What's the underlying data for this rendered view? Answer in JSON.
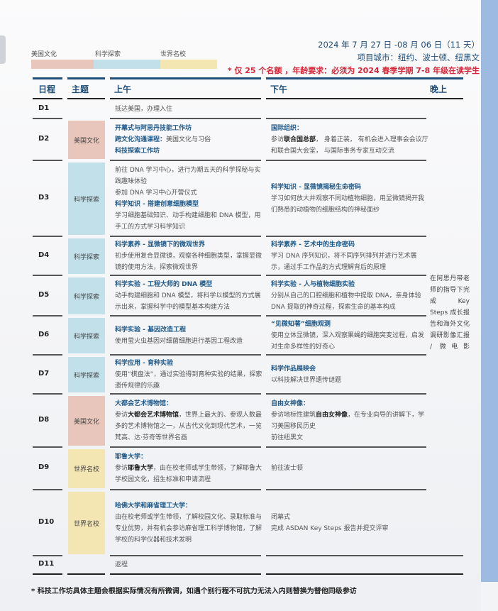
{
  "legend": [
    {
      "label": "美国文化",
      "color": "#e8c6bb"
    },
    {
      "label": "科学探索",
      "color": "#c2e0ea"
    },
    {
      "label": "世界名校",
      "color": "#f4e6b2"
    }
  ],
  "info": {
    "dates": "2024 年 7 月 27 日 -08 月 06 日（11 天）",
    "cities": "项目城市：纽约、波士顿、纽黑文",
    "requirement": "* 仅 25 个名额 ，年龄要求：必须为 2024 春季学期 7-8 年级在读学生"
  },
  "headers": {
    "day": "日程",
    "theme": "主题",
    "morning": "上午",
    "afternoon": "下午",
    "evening": "晚上"
  },
  "rows": [
    {
      "day": "D1",
      "theme": "",
      "am": [
        {
          "t": "",
          "s": "抵达美国，办理入住"
        }
      ],
      "pm": []
    },
    {
      "day": "D2",
      "theme": "美国文化",
      "am": [
        {
          "t": "开幕式与阿思丹技能工作坊",
          "s": ""
        },
        {
          "t": "跨文化沟通课程：",
          "s": "美国文化与习俗"
        },
        {
          "t": "科技探索工作坊",
          "s": ""
        }
      ],
      "pm": [
        {
          "t": "国际组织：",
          "s": ""
        },
        {
          "s": "参访",
          "k": "联合国总部",
          "s2": "， 身着正装， 有机会进入理事会会议厅和联合国大会堂， 与国际事务专家互动交流"
        }
      ]
    },
    {
      "day": "D3",
      "theme": "科学探索",
      "am": [
        {
          "t": "",
          "s": "前往 DNA 学习中心，进行为期五天的科学探秘与实践趣味体验"
        },
        {
          "t": "",
          "s": "参加 DNA 学习中心开营仪式"
        },
        {
          "t": "科学知识 - 搭建创意细胞模型",
          "s": ""
        },
        {
          "t": "",
          "s": "学习细胞基础知识、动手构建细胞和 DNA 模型，用手工的方式学习科学知识"
        }
      ],
      "pm": [
        {
          "t": "科学知识 - 显微镜揭秘生命密码",
          "s": ""
        },
        {
          "t": "",
          "s": "学习如何放大并观察不同动植物细胞，用显微镜揭开我们熟悉的动植物的细胞结构的神秘面纱"
        }
      ]
    },
    {
      "day": "D4",
      "theme": "科学探索",
      "am": [
        {
          "t": "科学素养 - 显微镜下的微观世界",
          "s": ""
        },
        {
          "t": "",
          "s": "初步使用复合显微镜，观察各种细胞类型，掌握显微镜的使用方法，探索微观世界"
        }
      ],
      "pm": [
        {
          "t": "科学素养 - 艺术中的生命密码",
          "s": ""
        },
        {
          "t": "",
          "s": "学习 DNA 序列知识，将不同序列排列并进行艺术展示，通过手工作品的方式理解背后的原理"
        }
      ]
    },
    {
      "day": "D5",
      "theme": "科学探索",
      "am": [
        {
          "t": "科学实验 - 工程大师的 DNA 模型",
          "s": ""
        },
        {
          "t": "",
          "s": "动手构建细胞和 DNA 模型，将科学以模型的方式展示出来，掌握科学中的模型基本构建方法"
        }
      ],
      "pm": [
        {
          "t": "科学实验 - 人与植物细胞实验",
          "s": ""
        },
        {
          "t": "",
          "s": "分别从自己的口腔细胞和植物中提取 DNA，亲身体验 DNA 提取的神奇过程，探索生命的基本构成"
        }
      ]
    },
    {
      "day": "D6",
      "theme": "科学探索",
      "am": [
        {
          "t": "科学实验 - 基因改造工程",
          "s": ""
        },
        {
          "t": "",
          "s": "使用萤火虫基因对细菌细胞进行基因工程改造"
        }
      ],
      "pm": [
        {
          "t": "“见微知著”细胞观测",
          "s": ""
        },
        {
          "t": "",
          "s": "使用立体显微镜，深入观察果蝇的细胞突变过程，启发对生命多样性的好奇心"
        }
      ]
    },
    {
      "day": "D7",
      "theme": "科学探索",
      "am": [
        {
          "t": "科学应用 - 育种实验",
          "s": ""
        },
        {
          "t": "",
          "s": "使用“棋盘法”，通过实验得到育种实验的结果，探索遗传规律的乐趣"
        }
      ],
      "pm": [
        {
          "t": "科学作品展映会",
          "s": ""
        },
        {
          "t": "",
          "s": "以科技解决世界遗传谜题"
        }
      ]
    },
    {
      "day": "D8",
      "theme": "美国文化",
      "am": [
        {
          "t": "大都会艺术博物馆：",
          "s": ""
        },
        {
          "s": "参访",
          "k": "大都会艺术博物馆",
          "s2": "，世界上最大的、参观人数最多的艺术博物馆之一，从古代文化到现代艺术，一览梵高、达·芬奇等世界名画"
        }
      ],
      "pm": [
        {
          "t": "自由女神像：",
          "s": ""
        },
        {
          "s": "参访地标性建筑",
          "k": "自由女神像",
          "s2": "，在专业向导的讲解下，学习美国移民历史"
        },
        {
          "t": "",
          "s": "前往纽黑文"
        }
      ]
    },
    {
      "day": "D9",
      "theme": "世界名校",
      "am": [
        {
          "t": "耶鲁大学：",
          "s": ""
        },
        {
          "s": "参访",
          "k": "耶鲁大学",
          "s2": "，由在校老师或学生带领，了解耶鲁大学校园文化，招生标准和申请流程"
        }
      ],
      "pm": [
        {
          "t": "",
          "s": "前往波士顿"
        }
      ]
    },
    {
      "day": "D10",
      "theme": "世界名校",
      "am": [
        {
          "t": "哈佛大学和麻省理工大学：",
          "s": ""
        },
        {
          "t": "",
          "s": "由在校老师或学生带领，了解校园文化、录取标准与专业优势，并有机会参访麻省理工科学博物馆，了解学校的科学仪器和技术发明"
        }
      ],
      "pm": [
        {
          "t": "",
          "s": "闭幕式"
        },
        {
          "t": "",
          "s": "完成 ASDAN Key Steps 报告并提交评审"
        }
      ]
    },
    {
      "day": "D11",
      "theme": "",
      "am": [
        {
          "t": "",
          "s": "返程"
        }
      ],
      "pm": []
    }
  ],
  "evening": "在阿思丹带老师的指导下完成 Key Steps 成长报告和海外文化调研影像汇报 / 微电影",
  "footnote": "* 科技工作坊具体主题会根据实际情况有所微调，如遇个别行程不可抗力无法入内则替换为替他同级参访"
}
